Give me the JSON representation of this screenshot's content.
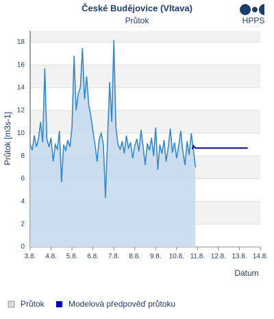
{
  "chart_data": {
    "type": "line",
    "title": "České Budějovice (Vltava)",
    "subtitle": "Průtok",
    "logo": "HPPS",
    "y_label": "Průtok [m3s-1]",
    "x_label": "Datum",
    "xlim": [
      0,
      11
    ],
    "xticks": [
      {
        "value": 0,
        "label": "3.8."
      },
      {
        "value": 1,
        "label": "4.8."
      },
      {
        "value": 2,
        "label": "5.8."
      },
      {
        "value": 3,
        "label": "6.8."
      },
      {
        "value": 4,
        "label": "7.8."
      },
      {
        "value": 5,
        "label": "8.8."
      },
      {
        "value": 6,
        "label": "9.8."
      },
      {
        "value": 7,
        "label": "10.8."
      },
      {
        "value": 8,
        "label": "11.8."
      },
      {
        "value": 9,
        "label": "12.8."
      },
      {
        "value": 10,
        "label": "13.8."
      },
      {
        "value": 11,
        "label": "14.8."
      }
    ],
    "ylim": [
      0,
      19
    ],
    "yticks": [
      0,
      2,
      4,
      6,
      8,
      10,
      12,
      14,
      16,
      18
    ],
    "grid": true,
    "series": [
      {
        "name": "Průtok",
        "color": "#3a87c8",
        "fill": "#c6dcf0",
        "legend_color": "#d9d9d9",
        "x": [
          0,
          0.1,
          0.2,
          0.3,
          0.4,
          0.5,
          0.6,
          0.7,
          0.8,
          0.9,
          1,
          1.1,
          1.2,
          1.3,
          1.4,
          1.5,
          1.6,
          1.7,
          1.8,
          1.9,
          2,
          2.1,
          2.2,
          2.3,
          2.4,
          2.5,
          2.6,
          2.7,
          2.8,
          2.9,
          3,
          3.1,
          3.2,
          3.3,
          3.4,
          3.5,
          3.6,
          3.7,
          3.8,
          3.9,
          4,
          4.1,
          4.2,
          4.3,
          4.4,
          4.5,
          4.6,
          4.7,
          4.8,
          4.9,
          5,
          5.1,
          5.2,
          5.3,
          5.4,
          5.5,
          5.6,
          5.7,
          5.8,
          5.9,
          6,
          6.1,
          6.2,
          6.3,
          6.4,
          6.5,
          6.6,
          6.7,
          6.8,
          6.9,
          7,
          7.1,
          7.2,
          7.3,
          7.4,
          7.5,
          7.6,
          7.7,
          7.8,
          7.9
        ],
        "values": [
          9.0,
          8.5,
          9.8,
          8.8,
          9.5,
          11.0,
          9.2,
          15.7,
          9.5,
          8.8,
          9.6,
          7.5,
          9.0,
          8.6,
          10.2,
          5.7,
          9.0,
          8.5,
          9.4,
          8.8,
          10.5,
          16.8,
          12.0,
          13.5,
          14.0,
          17.5,
          13.0,
          15.0,
          12.5,
          11.5,
          10.2,
          9.0,
          7.5,
          9.5,
          10.0,
          9.0,
          4.3,
          9.5,
          14.5,
          11.0,
          18.2,
          10.5,
          9.0,
          8.6,
          9.3,
          8.2,
          9.8,
          8.7,
          9.2,
          7.8,
          8.9,
          9.5,
          8.4,
          10.3,
          8.8,
          7.2,
          9.1,
          8.5,
          9.6,
          8.0,
          10.5,
          6.8,
          9.0,
          8.2,
          9.4,
          7.5,
          8.8,
          10.4,
          8.3,
          9.2,
          7.8,
          8.9,
          10.2,
          8.4,
          7.2,
          9.3,
          8.1,
          10.0,
          8.6,
          7.0
        ]
      },
      {
        "name": "Modelová předpověď průtoku",
        "color": "#0000cc",
        "x": [
          7.75,
          7.8,
          7.9,
          8.0,
          10.4
        ],
        "values": [
          8.6,
          8.9,
          8.7,
          8.7,
          8.7
        ]
      }
    ]
  }
}
